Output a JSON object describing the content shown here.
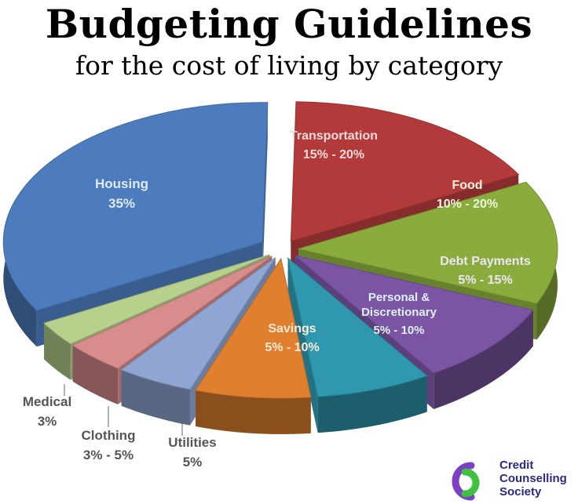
{
  "header": {
    "title": "Budgeting Guidelines",
    "subtitle": "for the cost of living by category"
  },
  "chart_data": {
    "type": "pie",
    "title": "Budgeting Guidelines",
    "subtitle": "for the cost of living by category",
    "slices": [
      {
        "label": "Transportation",
        "range": "15% - 20%",
        "value": 17.5,
        "color": "#b33a3a"
      },
      {
        "label": "Food",
        "range": "10% - 20%",
        "value": 15,
        "color": "#8aac3c"
      },
      {
        "label": "Debt Payments",
        "range": "5% - 15%",
        "value": 10,
        "color": "#7b55a3"
      },
      {
        "label": "Personal & Discretionary",
        "range": "5% - 10%",
        "value": 7.5,
        "color": "#2f98ae"
      },
      {
        "label": "Savings",
        "range": "5% - 10%",
        "value": 7.5,
        "color": "#e0802e"
      },
      {
        "label": "Utilities",
        "range": "5%",
        "value": 5,
        "color": "#8fa6d4"
      },
      {
        "label": "Clothing",
        "range": "3% - 5%",
        "value": 4,
        "color": "#d98c8c"
      },
      {
        "label": "Medical",
        "range": "3%",
        "value": 3,
        "color": "#b7d08c"
      },
      {
        "label": "Housing",
        "range": "35%",
        "value": 35,
        "color": "#4c7cbd"
      }
    ]
  },
  "logo": {
    "line1": "Credit",
    "line2": "Counselling",
    "line3": "Society",
    "color": "#2a2a86",
    "accent1": "#7c3fc6",
    "accent2": "#3ec23e"
  }
}
